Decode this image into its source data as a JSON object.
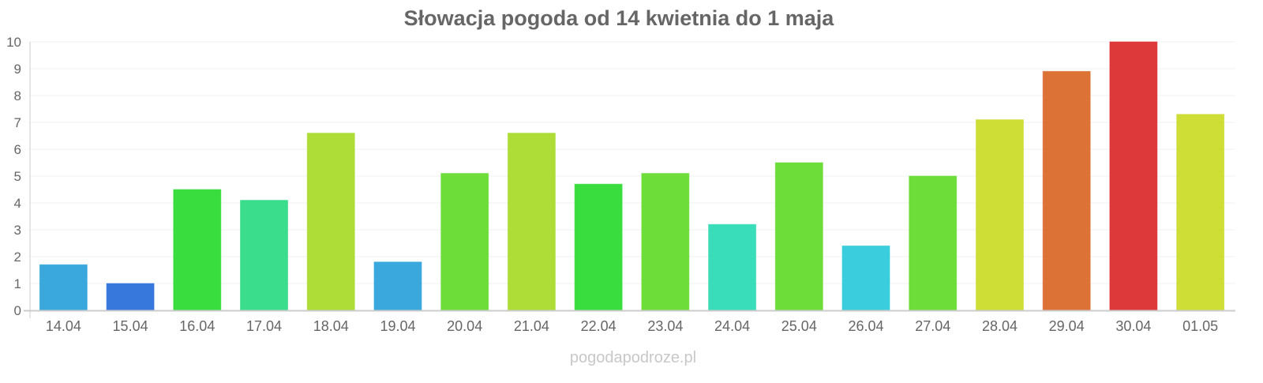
{
  "chart_data": {
    "type": "bar",
    "title": "Słowacja pogoda od 14 kwietnia do 1 maja",
    "xlabel": "",
    "ylabel": "",
    "ylim": [
      0,
      10
    ],
    "yticks": [
      "0",
      "1",
      "2",
      "3",
      "4",
      "5",
      "6",
      "7",
      "8",
      "9",
      "10"
    ],
    "grid": true,
    "categories": [
      "14.04",
      "15.04",
      "16.04",
      "17.04",
      "18.04",
      "19.04",
      "20.04",
      "21.04",
      "22.04",
      "23.04",
      "24.04",
      "25.04",
      "26.04",
      "27.04",
      "28.04",
      "29.04",
      "30.04",
      "01.05"
    ],
    "values": [
      1.7,
      1.0,
      4.5,
      4.1,
      6.6,
      1.8,
      5.1,
      6.6,
      4.7,
      5.1,
      3.2,
      5.5,
      2.4,
      5.0,
      7.1,
      8.9,
      10.0,
      7.3
    ],
    "colors": [
      "#36a6dc",
      "#3375dc",
      "#36dc3a",
      "#36dc8a",
      "#acdc33",
      "#36a6dc",
      "#6adc36",
      "#acdc33",
      "#36dc3a",
      "#6adc36",
      "#36dcb8",
      "#6adc36",
      "#36ccdc",
      "#6adc36",
      "#cedc33",
      "#dc6f33",
      "#dc3436",
      "#cedc33"
    ]
  },
  "watermark": "pogodapodroze.pl"
}
